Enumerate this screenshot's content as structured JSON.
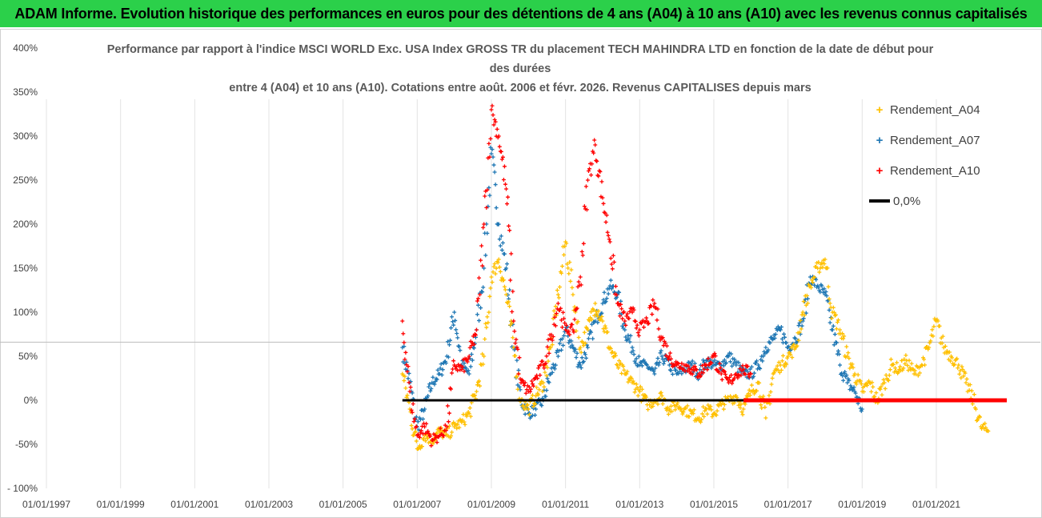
{
  "header": {
    "banner": "ADAM Informe. Evolution historique des performances en euros pour des détentions de 4 ans (A04) à 10 ans (A10) avec les revenus connus capitalisés"
  },
  "colors": {
    "banner_bg": "#2bd04a",
    "A04": "#ffc000",
    "A07": "#1f77b4",
    "A10": "#ff0000",
    "zero_line": "#000000"
  },
  "chart_data": {
    "type": "scatter",
    "title_lines": [
      "Performance par rapport à l'indice MSCI WORLD Exc. USA Index GROSS TR  du placement TECH MAHINDRA LTD en fonction de la date de début pour",
      "des durées",
      "entre 4 (A04) et 10 ans (A10). Cotations entre août. 2006 et févr. 2026. Revenus CAPITALISES depuis mars"
    ],
    "xlabel": "",
    "ylabel": "",
    "x_range": [
      1997.0,
      2022.9
    ],
    "y_range": [
      -100,
      400
    ],
    "y_ticks": [
      -100,
      -50,
      0,
      50,
      100,
      150,
      200,
      250,
      300,
      350,
      400
    ],
    "y_tick_labels": [
      "- 100%",
      "-50%",
      "0%",
      "50%",
      "100%",
      "150%",
      "200%",
      "250%",
      "300%",
      "350%",
      "400%"
    ],
    "x_tick_labels": [
      "01/01/1997",
      "01/01/1999",
      "01/01/2001",
      "01/01/2003",
      "01/01/2005",
      "01/01/2007",
      "01/01/2009",
      "01/01/2011",
      "01/01/2013",
      "01/01/2015",
      "01/01/2017",
      "01/01/2019",
      "01/01/2021"
    ],
    "x_tick_values": [
      1997,
      1999,
      2001,
      2003,
      2005,
      2007,
      2009,
      2011,
      2013,
      2015,
      2017,
      2019,
      2021
    ],
    "legend": [
      {
        "name": "Rendement_A04",
        "marker": "+",
        "color": "#ffc000"
      },
      {
        "name": "Rendement_A07",
        "marker": "+",
        "color": "#1f77b4"
      },
      {
        "name": "Rendement_A10",
        "marker": "+",
        "color": "#ff0000"
      },
      {
        "name": "0,0%",
        "marker": "line",
        "color": "#000000"
      }
    ],
    "series": [
      {
        "name": "Rendement_A04",
        "color": "#ffc000",
        "x": [
          2006.6,
          2006.8,
          2007.0,
          2007.2,
          2007.4,
          2007.6,
          2007.8,
          2008.0,
          2008.2,
          2008.4,
          2008.6,
          2008.8,
          2009.0,
          2009.2,
          2009.4,
          2009.6,
          2009.8,
          2010.0,
          2010.2,
          2010.4,
          2010.6,
          2010.8,
          2011.0,
          2011.2,
          2011.4,
          2011.6,
          2011.8,
          2012.0,
          2012.2,
          2012.4,
          2012.6,
          2012.8,
          2013.0,
          2013.2,
          2013.4,
          2013.6,
          2013.8,
          2014.0,
          2014.2,
          2014.4,
          2014.6,
          2014.8,
          2015.0,
          2015.2,
          2015.4,
          2015.6,
          2015.8,
          2016.0,
          2016.2,
          2016.4,
          2016.6,
          2016.8,
          2017.0,
          2017.2,
          2017.4,
          2017.6,
          2017.8,
          2018.0,
          2018.2,
          2018.4,
          2018.6,
          2018.8,
          2019.0,
          2019.2,
          2019.4,
          2019.6,
          2019.8,
          2020.0,
          2020.2,
          2020.4,
          2020.6,
          2020.8,
          2021.0,
          2021.2,
          2021.4,
          2021.6,
          2021.8,
          2022.0,
          2022.2,
          2022.4
        ],
        "y": [
          30,
          -10,
          -55,
          -40,
          -45,
          -35,
          -40,
          -30,
          -25,
          -15,
          10,
          50,
          140,
          160,
          120,
          60,
          0,
          -10,
          5,
          20,
          60,
          120,
          180,
          120,
          60,
          80,
          110,
          90,
          60,
          40,
          30,
          20,
          10,
          -5,
          0,
          5,
          -10,
          -5,
          -10,
          -15,
          -20,
          -10,
          -15,
          -5,
          0,
          5,
          -10,
          10,
          20,
          -20,
          30,
          40,
          50,
          60,
          100,
          130,
          150,
          160,
          100,
          80,
          50,
          30,
          10,
          20,
          0,
          20,
          40,
          35,
          45,
          30,
          40,
          60,
          90,
          60,
          50,
          40,
          20,
          0,
          -30,
          -35
        ]
      },
      {
        "name": "Rendement_A07",
        "color": "#1f77b4",
        "x": [
          2006.6,
          2006.8,
          2007.0,
          2007.2,
          2007.4,
          2007.6,
          2007.8,
          2008.0,
          2008.2,
          2008.4,
          2008.6,
          2008.8,
          2009.0,
          2009.2,
          2009.4,
          2009.6,
          2009.8,
          2010.0,
          2010.2,
          2010.4,
          2010.6,
          2010.8,
          2011.0,
          2011.2,
          2011.4,
          2011.6,
          2011.8,
          2012.0,
          2012.2,
          2012.4,
          2012.6,
          2012.8,
          2013.0,
          2013.2,
          2013.4,
          2013.6,
          2013.8,
          2014.0,
          2014.2,
          2014.4,
          2014.6,
          2014.8,
          2015.0,
          2015.2,
          2015.4,
          2015.6,
          2015.8,
          2016.0,
          2016.2,
          2016.4,
          2016.6,
          2016.8,
          2017.0,
          2017.2,
          2017.4,
          2017.6,
          2017.8,
          2018.0,
          2018.2,
          2018.4,
          2018.6,
          2018.8,
          2019.0
        ],
        "y": [
          60,
          20,
          -30,
          -10,
          20,
          30,
          50,
          100,
          40,
          30,
          80,
          150,
          280,
          200,
          150,
          60,
          0,
          -15,
          -10,
          0,
          30,
          50,
          80,
          60,
          40,
          60,
          90,
          110,
          130,
          120,
          80,
          60,
          40,
          40,
          30,
          50,
          40,
          30,
          35,
          40,
          30,
          45,
          40,
          40,
          50,
          40,
          30,
          30,
          40,
          60,
          70,
          80,
          60,
          70,
          90,
          140,
          130,
          120,
          80,
          40,
          20,
          10,
          -10
        ]
      },
      {
        "name": "Rendement_A10",
        "color": "#ff0000",
        "x": [
          2006.6,
          2006.8,
          2007.0,
          2007.2,
          2007.4,
          2007.6,
          2007.8,
          2008.0,
          2008.2,
          2008.4,
          2008.6,
          2008.8,
          2009.0,
          2009.2,
          2009.4,
          2009.6,
          2009.8,
          2010.0,
          2010.2,
          2010.4,
          2010.6,
          2010.8,
          2011.0,
          2011.2,
          2011.4,
          2011.6,
          2011.8,
          2012.0,
          2012.2,
          2012.4,
          2012.6,
          2012.8,
          2013.0,
          2013.2,
          2013.4,
          2013.6,
          2013.8,
          2014.0,
          2014.2,
          2014.4,
          2014.6,
          2014.8,
          2015.0,
          2015.2,
          2015.4,
          2015.6,
          2015.8,
          2016.0
        ],
        "y": [
          90,
          10,
          -40,
          -30,
          -45,
          -40,
          -30,
          40,
          35,
          50,
          80,
          200,
          330,
          300,
          240,
          90,
          20,
          10,
          25,
          40,
          70,
          110,
          80,
          80,
          140,
          250,
          290,
          230,
          180,
          110,
          90,
          100,
          80,
          90,
          110,
          70,
          50,
          40,
          40,
          35,
          30,
          40,
          50,
          30,
          20,
          30,
          35,
          30
        ]
      }
    ],
    "zero_lines": [
      {
        "name": "0,0%",
        "color": "#000000",
        "x0": 2006.6,
        "x1": 2015.8,
        "y": 0
      },
      {
        "name": "Rendement_A10 zero",
        "color": "#ff0000",
        "x0": 2015.8,
        "x1": 2022.9,
        "y": 0
      }
    ]
  }
}
